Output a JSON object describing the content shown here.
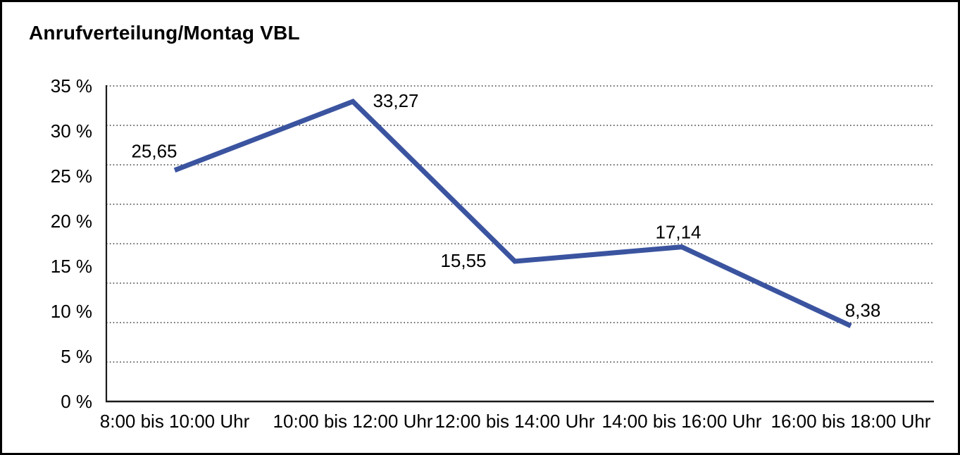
{
  "chart_data": {
    "type": "line",
    "title": "Anrufverteilung/Montag VBL",
    "categories": [
      "8:00 bis 10:00 Uhr",
      "10:00 bis 12:00 Uhr",
      "12:00 bis 14:00 Uhr",
      "14:00 bis 16:00 Uhr",
      "16:00 bis 18:00 Uhr"
    ],
    "values": [
      25.65,
      33.27,
      15.55,
      17.14,
      8.38
    ],
    "value_labels": [
      "25,65",
      "33,27",
      "15,55",
      "17,14",
      "8,38"
    ],
    "y_tick_labels": [
      "0 %",
      "5 %",
      "10 %",
      "15 %",
      "20 %",
      "25 %",
      "30 %",
      "35 %"
    ],
    "ylim": [
      0,
      35
    ],
    "xlabel": "",
    "ylabel": "",
    "grid": "horizontal-dotted",
    "legend": "none",
    "line_color": "#3B54A0",
    "grid_color": "#3c3c3c",
    "axis_color": "#1a1a1a",
    "text_color": "#000000",
    "background": "#ffffff"
  }
}
